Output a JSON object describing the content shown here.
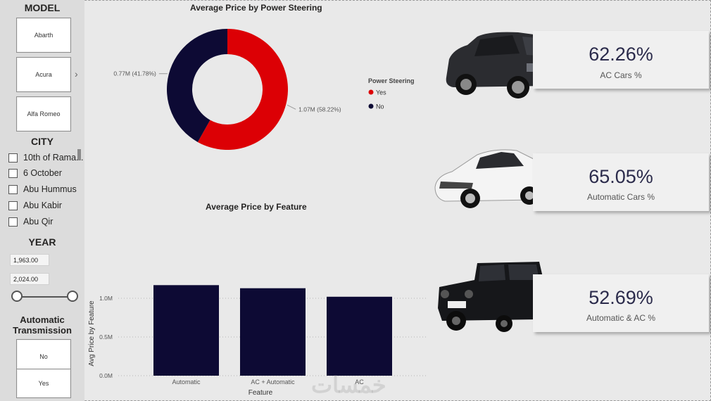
{
  "sidebar": {
    "model": {
      "title": "MODEL",
      "items": [
        "Abarth",
        "Acura",
        "Alfa Romeo"
      ]
    },
    "city": {
      "title": "CITY",
      "items": [
        "10th of Rama...",
        "6 October",
        "Abu Hummus",
        "Abu Kabir",
        "Abu Qir"
      ]
    },
    "year": {
      "title": "YEAR",
      "from": "1,963.00",
      "to": "2,024.00"
    },
    "transmission": {
      "title_line1": "Automatic",
      "title_line2": "Transmission",
      "items": [
        "No",
        "Yes"
      ]
    }
  },
  "donut": {
    "title": "Average Price by Power Steering",
    "legend_title": "Power Steering",
    "colors": {
      "Yes": "#dc0005",
      "No": "#0d0a34"
    },
    "chart_data": {
      "type": "pie",
      "title": "Average Price by Power Steering",
      "categories": [
        "Yes",
        "No"
      ],
      "values": [
        1.07,
        0.77
      ],
      "percent": [
        58.22,
        41.78
      ],
      "labels": [
        "1.07M (58.22%)",
        "0.77M (41.78%)"
      ]
    }
  },
  "bars": {
    "title": "Average Price by Feature",
    "xlabel": "Feature",
    "ylabel": "Avg Price by Feature",
    "color": "#0d0a34",
    "chart_data": {
      "type": "bar",
      "title": "Average Price by Feature",
      "categories": [
        "Automatic",
        "AC + Automatic",
        "AC"
      ],
      "values": [
        1.17,
        1.13,
        1.02
      ],
      "value_unit": "M",
      "ylim": [
        0,
        1.25
      ],
      "yticks": [
        "0.0M",
        "0.5M",
        "1.0M"
      ],
      "xlabel": "Feature",
      "ylabel": "Avg Price by Feature",
      "grid": true
    }
  },
  "kpis": [
    {
      "value": "62.26%",
      "label": "AC Cars %",
      "image": "suv-car-image"
    },
    {
      "value": "65.05%",
      "label": "Automatic Cars %",
      "image": "sedan-car-image"
    },
    {
      "value": "52.69%",
      "label": "Automatic & AC %",
      "image": "gclass-car-image"
    }
  ],
  "watermark": "خمسات"
}
